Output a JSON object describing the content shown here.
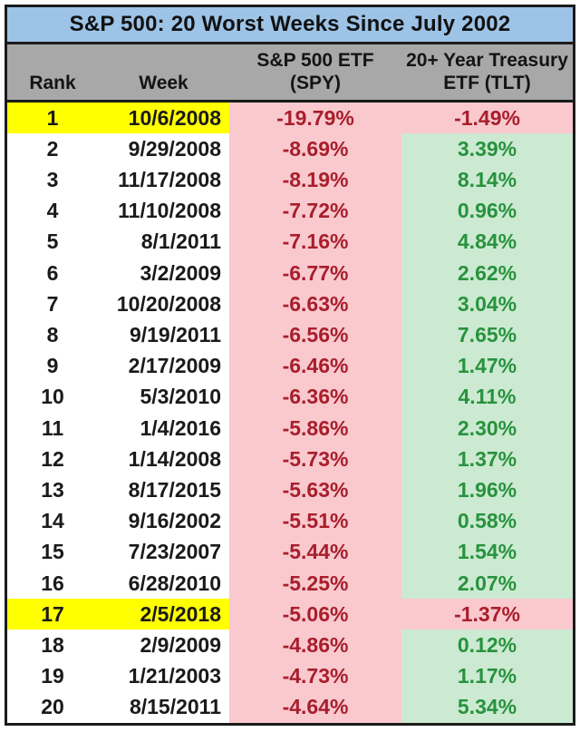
{
  "title": "S&P 500: 20 Worst Weeks Since July 2002",
  "header": {
    "rank": "Rank",
    "week": "Week",
    "spy_line1": "S&P 500 ETF",
    "spy_line2": "(SPY)",
    "tlt_line1": "20+ Year Treasury",
    "tlt_line2": "ETF (TLT)"
  },
  "colors": {
    "title_bg": "#9dc3e6",
    "header_bg": "#a8a8a8",
    "highlight_yellow": "#ffff00",
    "negative_bg": "#f9c9ce",
    "negative_text": "#a81e2c",
    "positive_bg": "#cbead1",
    "positive_text": "#28923e",
    "border": "#1b1b1b"
  },
  "chart_data": {
    "type": "table",
    "title": "S&P 500: 20 Worst Weeks Since July 2002",
    "columns": [
      "Rank",
      "Week",
      "S&P 500 ETF (SPY)",
      "20+ Year Treasury ETF (TLT)"
    ],
    "rows": [
      [
        1,
        "10/6/2008",
        "-19.79%",
        "-1.49%"
      ],
      [
        2,
        "9/29/2008",
        "-8.69%",
        "3.39%"
      ],
      [
        3,
        "11/17/2008",
        "-8.19%",
        "8.14%"
      ],
      [
        4,
        "11/10/2008",
        "-7.72%",
        "0.96%"
      ],
      [
        5,
        "8/1/2011",
        "-7.16%",
        "4.84%"
      ],
      [
        6,
        "3/2/2009",
        "-6.77%",
        "2.62%"
      ],
      [
        7,
        "10/20/2008",
        "-6.63%",
        "3.04%"
      ],
      [
        8,
        "9/19/2011",
        "-6.56%",
        "7.65%"
      ],
      [
        9,
        "2/17/2009",
        "-6.46%",
        "1.47%"
      ],
      [
        10,
        "5/3/2010",
        "-6.36%",
        "4.11%"
      ],
      [
        11,
        "1/4/2016",
        "-5.86%",
        "2.30%"
      ],
      [
        12,
        "1/14/2008",
        "-5.73%",
        "1.37%"
      ],
      [
        13,
        "8/17/2015",
        "-5.63%",
        "1.96%"
      ],
      [
        14,
        "9/16/2002",
        "-5.51%",
        "0.58%"
      ],
      [
        15,
        "7/23/2007",
        "-5.44%",
        "1.54%"
      ],
      [
        16,
        "6/28/2010",
        "-5.25%",
        "2.07%"
      ],
      [
        17,
        "2/5/2018",
        "-5.06%",
        "-1.37%"
      ],
      [
        18,
        "2/9/2009",
        "-4.86%",
        "0.12%"
      ],
      [
        19,
        "1/21/2003",
        "-4.73%",
        "1.17%"
      ],
      [
        20,
        "8/15/2011",
        "-4.64%",
        "5.34%"
      ]
    ],
    "highlighted_ranks": [
      1,
      17
    ]
  }
}
